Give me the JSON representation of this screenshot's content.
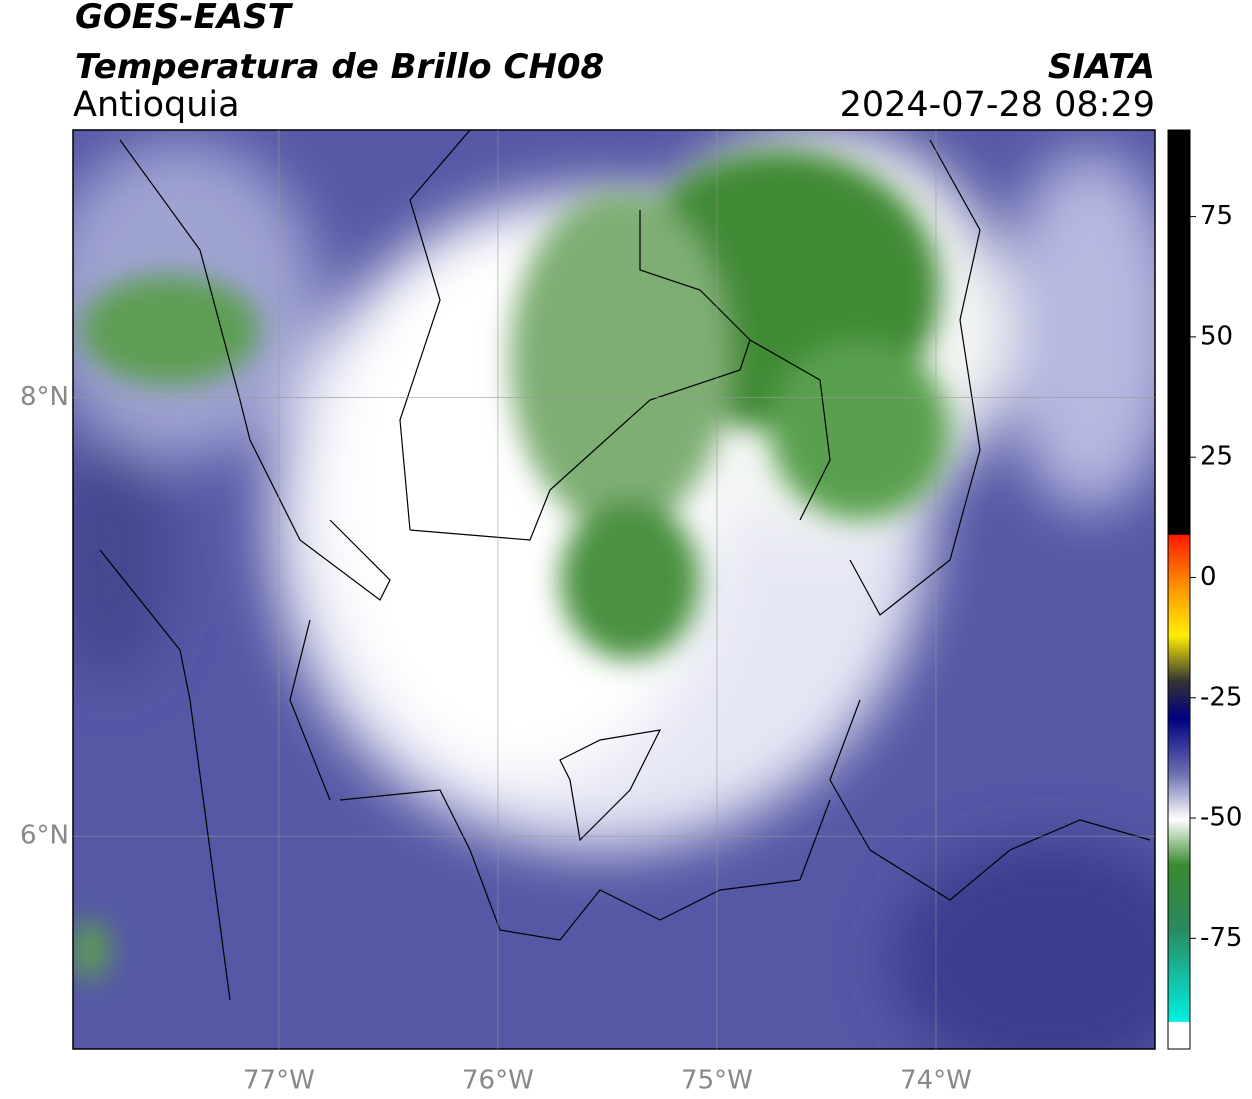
{
  "header": {
    "title": "GOES-EAST",
    "subtitle": "Temperatura de Brillo CH08",
    "region": "Antioquia",
    "source": "SIATA",
    "datetime": "2024-07-28 08:29"
  },
  "map": {
    "xlim": [
      -77.94,
      -73.0
    ],
    "ylim": [
      5.03,
      9.22
    ],
    "lon_ticks": [
      {
        "value": -77,
        "label": "77°W"
      },
      {
        "value": -76,
        "label": "76°W"
      },
      {
        "value": -75,
        "label": "75°W"
      },
      {
        "value": -74,
        "label": "74°W"
      }
    ],
    "lat_ticks": [
      {
        "value": 8,
        "label": "8°N"
      },
      {
        "value": 6,
        "label": "6°N"
      }
    ]
  },
  "colorbar": {
    "lim": [
      -98,
      93
    ],
    "ticks": [
      75,
      50,
      25,
      0,
      -25,
      -50,
      -75
    ]
  }
}
